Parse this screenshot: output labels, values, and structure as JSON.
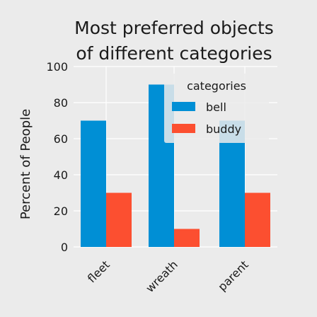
{
  "chart_data": {
    "type": "bar",
    "title": "Most preferred objects of different categories",
    "title_lines": [
      "Most preferred objects",
      "of different categories"
    ],
    "xlabel": "",
    "ylabel": "Percent of People",
    "categories": [
      "fleet",
      "wreath",
      "parent"
    ],
    "series": [
      {
        "name": "bell",
        "values": [
          70,
          90,
          70
        ]
      },
      {
        "name": "buddy",
        "values": [
          30,
          10,
          30
        ]
      }
    ],
    "ylim": [
      0,
      100
    ],
    "yticks": [
      0,
      20,
      40,
      60,
      80,
      100
    ],
    "grid": true,
    "legend": {
      "title": "categories",
      "placement": "top-right"
    },
    "colors": {
      "bell": "#008fd5",
      "buddy": "#fc4f30",
      "background": "#ebebeb",
      "grid": "#ffffff"
    }
  }
}
